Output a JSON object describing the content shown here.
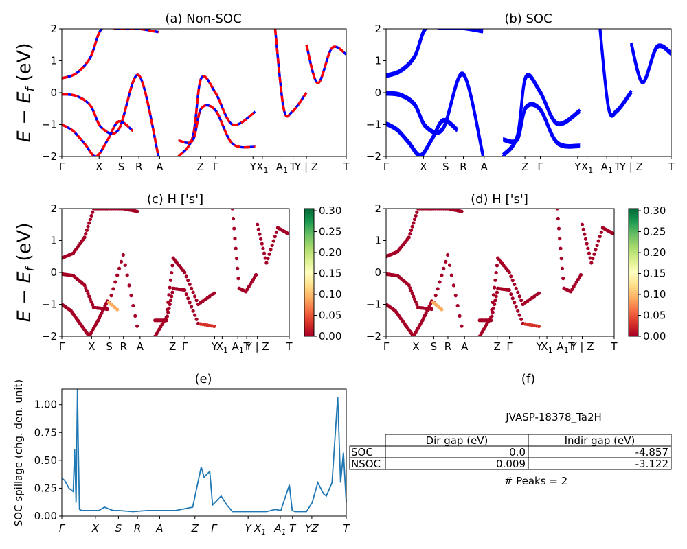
{
  "panels": {
    "a": {
      "title": "(a) Non-SOC"
    },
    "b": {
      "title": "(b) SOC"
    },
    "c": {
      "title": "(c)  H ['s']"
    },
    "d": {
      "title": "(d) H ['s']"
    },
    "e": {
      "title": "(e)"
    },
    "f": {
      "title": "(f)"
    }
  },
  "band_ylabel": "E − E",
  "band_ylabel_sub": "f",
  "band_ylabel_unit": " (eV)",
  "kpath_labels": [
    {
      "label": "Γ",
      "k": 0.0
    },
    {
      "label": "X",
      "k": 0.131
    },
    {
      "label": "S",
      "k": 0.209
    },
    {
      "label": "R",
      "k": 0.271
    },
    {
      "label": "A",
      "k": 0.344
    },
    {
      "label": "Z",
      "k": 0.487
    },
    {
      "label": "Γ",
      "k": 0.541
    },
    {
      "label": "Y",
      "k": 0.672
    },
    {
      "label": "X1",
      "k": 0.705
    },
    {
      "label": "A1",
      "k": 0.774
    },
    {
      "label": "T",
      "k": 0.813
    },
    {
      "label": "Y | Z",
      "k": 0.86
    },
    {
      "label": "T",
      "k": 1.0
    }
  ],
  "colors": {
    "nonsoc_a": "#ff0000",
    "nonsoc_b": "#0000ff",
    "soc": "#0000ff",
    "spillage_line": "#1f77b4",
    "cmap": [
      "#a50026",
      "#d73027",
      "#f46d43",
      "#fdae61",
      "#fee08b",
      "#ffffbf",
      "#d9ef8b",
      "#a6d96a",
      "#66bd63",
      "#1a9850",
      "#006837"
    ]
  },
  "colorbar_ticks": [
    "0.00",
    "0.05",
    "0.10",
    "0.15",
    "0.20",
    "0.25",
    "0.30"
  ],
  "spillage_ylabel": "SOC spillage (chg. den. unit)",
  "spillage_yticks": [
    "0.00",
    "0.25",
    "0.50",
    "0.75",
    "1.00"
  ],
  "spillage_xticks": [
    "Γ",
    "X",
    "S",
    "R",
    "A",
    "Z",
    "Γ",
    "Y",
    "X1",
    "A1",
    "T",
    "YZ",
    "T"
  ],
  "table": {
    "title": "JVASP-18378_Ta2H",
    "col_headers": [
      "Dir gap (eV)",
      "Indir gap (eV)"
    ],
    "rows": [
      {
        "label": "SOC",
        "dir": "0.0",
        "indir": "-4.857"
      },
      {
        "label": "NSOC",
        "dir": "0.009",
        "indir": "-3.122"
      }
    ],
    "peaks": "# Peaks = 2"
  },
  "chart_data": [
    {
      "type": "line",
      "title": "(a) Non-SOC",
      "ylabel": "E − E_f (eV)",
      "ylim": [
        -2,
        2
      ],
      "yticks": [
        -2,
        -1,
        0,
        1,
        2
      ],
      "x_kind": "k-path",
      "series": [
        {
          "x": [
            0.0,
            0.05,
            0.1,
            0.14,
            0.2,
            0.27,
            0.34
          ],
          "y": [
            -0.05,
            -0.1,
            -0.4,
            -1.1,
            -1.15,
            0.55,
            -2.0
          ]
        },
        {
          "x": [
            0.0,
            0.05,
            0.1,
            0.14,
            0.2,
            0.27,
            0.34
          ],
          "y": [
            0.45,
            0.6,
            1.1,
            2.0,
            2.0,
            2.0,
            1.9
          ]
        },
        {
          "x": [
            0.0,
            0.04,
            0.08,
            0.12,
            0.16,
            0.2,
            0.25
          ],
          "y": [
            -1.0,
            -1.2,
            -1.6,
            -2.0,
            -1.5,
            -0.9,
            -1.2
          ]
        },
        {
          "x": [
            0.41,
            0.46,
            0.49,
            0.54,
            0.6,
            0.68
          ],
          "y": [
            -2.0,
            -1.4,
            0.45,
            0.0,
            -1.0,
            -0.6
          ]
        },
        {
          "x": [
            0.41,
            0.46,
            0.49,
            0.54,
            0.6,
            0.68
          ],
          "y": [
            -1.5,
            -1.5,
            -0.5,
            -0.55,
            -1.6,
            -1.7
          ]
        },
        {
          "x": [
            0.75,
            0.78,
            0.81,
            0.86
          ],
          "y": [
            2.0,
            -0.5,
            -0.6,
            0.0
          ]
        },
        {
          "x": [
            0.86,
            0.9,
            0.95,
            1.0
          ],
          "y": [
            1.5,
            0.3,
            1.4,
            1.2
          ]
        }
      ]
    },
    {
      "type": "line",
      "title": "(b) SOC",
      "ylim": [
        -2,
        2
      ],
      "yticks": [
        -2,
        -1,
        0,
        1,
        2
      ],
      "x_kind": "k-path",
      "series": [
        {
          "x": [
            0.0,
            0.05,
            0.1,
            0.14,
            0.2,
            0.27,
            0.34
          ],
          "y": [
            -0.05,
            -0.1,
            -0.4,
            -1.1,
            -1.15,
            0.55,
            -2.0
          ]
        },
        {
          "x": [
            0.0,
            0.05,
            0.1,
            0.14,
            0.2,
            0.27,
            0.34
          ],
          "y": [
            0.5,
            0.65,
            1.1,
            2.0,
            2.0,
            2.0,
            1.9
          ]
        },
        {
          "x": [
            0.0,
            0.04,
            0.08,
            0.12,
            0.16,
            0.2,
            0.25
          ],
          "y": [
            -1.0,
            -1.2,
            -1.6,
            -2.0,
            -1.5,
            -0.9,
            -1.2
          ]
        },
        {
          "x": [
            0.41,
            0.46,
            0.49,
            0.54,
            0.6,
            0.68
          ],
          "y": [
            -2.0,
            -1.4,
            0.45,
            0.0,
            -1.0,
            -0.6
          ]
        },
        {
          "x": [
            0.41,
            0.46,
            0.49,
            0.54,
            0.6,
            0.68
          ],
          "y": [
            -1.5,
            -1.5,
            -0.5,
            -0.55,
            -1.6,
            -1.7
          ]
        },
        {
          "x": [
            0.75,
            0.78,
            0.81,
            0.86
          ],
          "y": [
            2.0,
            -0.5,
            -0.6,
            0.0
          ]
        },
        {
          "x": [
            0.86,
            0.9,
            0.95,
            1.0
          ],
          "y": [
            1.5,
            0.3,
            1.4,
            1.2
          ]
        }
      ]
    },
    {
      "type": "scatter",
      "title": "(c)  H ['s']",
      "ylim": [
        -2,
        2
      ],
      "colorbar_range": [
        0,
        0.3
      ],
      "x_kind": "k-path"
    },
    {
      "type": "scatter",
      "title": "(d) H ['s']",
      "ylim": [
        -2,
        2
      ],
      "colorbar_range": [
        0,
        0.3
      ],
      "x_kind": "k-path"
    },
    {
      "type": "line",
      "title": "(e)",
      "ylabel": "SOC spillage (chg. den. unit)",
      "ylim": [
        0,
        1.14
      ],
      "yticks": [
        0,
        0.25,
        0.5,
        0.75,
        1.0
      ],
      "x": [
        0.0,
        0.01,
        0.025,
        0.04,
        0.045,
        0.05,
        0.055,
        0.058,
        0.062,
        0.07,
        0.1,
        0.13,
        0.15,
        0.18,
        0.2,
        0.25,
        0.3,
        0.4,
        0.46,
        0.49,
        0.5,
        0.52,
        0.53,
        0.56,
        0.58,
        0.6,
        0.64,
        0.72,
        0.75,
        0.77,
        0.8,
        0.81,
        0.82,
        0.86,
        0.88,
        0.9,
        0.92,
        0.93,
        0.95,
        0.97,
        0.98,
        0.99,
        1.0
      ],
      "y": [
        0.34,
        0.32,
        0.25,
        0.22,
        0.6,
        0.12,
        1.14,
        0.6,
        0.06,
        0.05,
        0.05,
        0.05,
        0.08,
        0.05,
        0.05,
        0.04,
        0.05,
        0.05,
        0.08,
        0.44,
        0.35,
        0.4,
        0.1,
        0.18,
        0.1,
        0.04,
        0.04,
        0.04,
        0.06,
        0.05,
        0.28,
        0.05,
        0.04,
        0.04,
        0.12,
        0.3,
        0.2,
        0.18,
        0.3,
        1.07,
        0.3,
        0.57,
        0.12
      ]
    },
    {
      "type": "table",
      "title": "JVASP-18378_Ta2H",
      "columns": [
        "",
        "Dir gap (eV)",
        "Indir gap (eV)"
      ],
      "rows": [
        [
          "SOC",
          "0.0",
          "-4.857"
        ],
        [
          "NSOC",
          "0.009",
          "-3.122"
        ]
      ]
    }
  ]
}
